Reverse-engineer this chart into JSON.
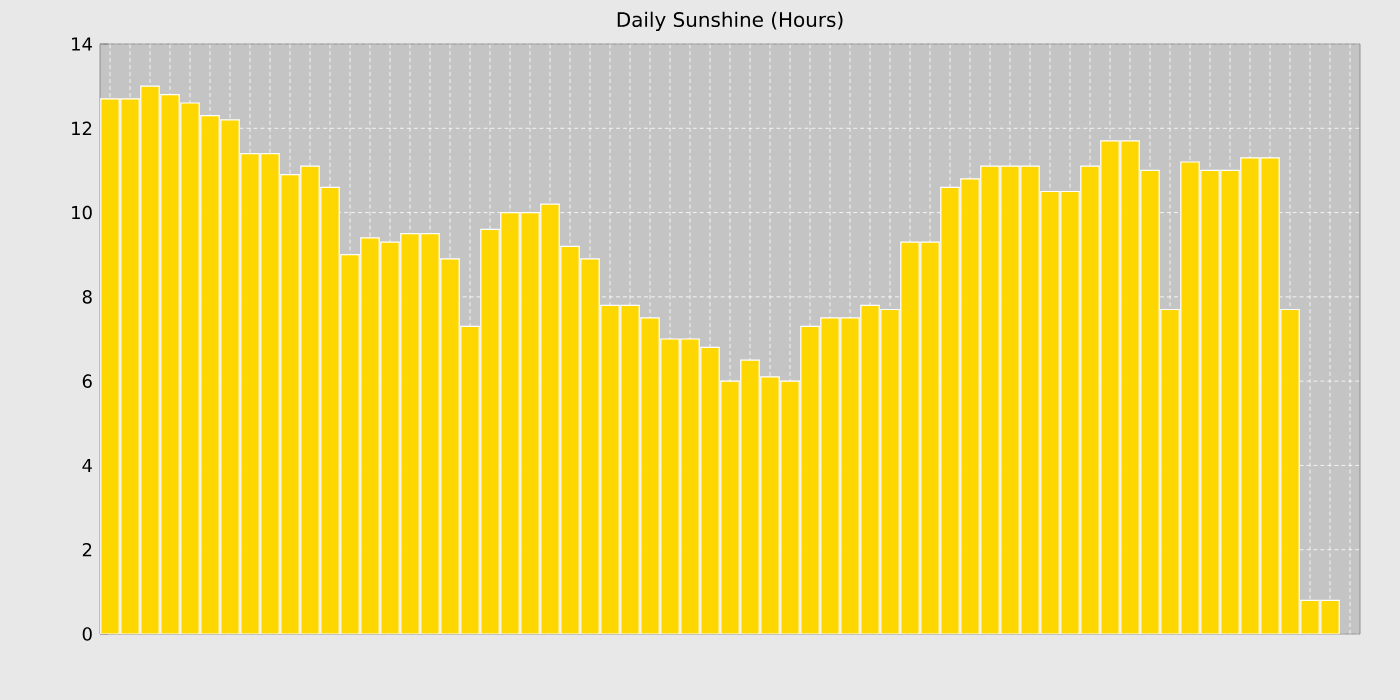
{
  "chart_data": {
    "type": "bar",
    "title": "Daily Sunshine (Hours)",
    "categories": [
      null,
      null,
      null,
      null,
      null,
      null,
      null,
      null,
      null,
      null,
      null,
      null,
      null,
      null,
      null,
      null,
      null,
      null,
      null,
      null,
      null,
      null,
      null,
      null,
      null,
      null,
      null,
      null,
      null,
      null,
      null,
      null,
      null,
      null,
      null,
      null,
      null,
      null,
      null,
      null,
      null,
      null,
      null,
      null,
      null,
      null,
      null,
      null,
      null,
      null,
      null,
      null,
      null,
      null,
      null,
      null,
      null,
      null,
      null,
      null,
      null,
      null,
      null
    ],
    "values": [
      12.7,
      12.7,
      13.0,
      12.8,
      12.6,
      12.3,
      12.2,
      11.4,
      11.4,
      10.9,
      11.1,
      10.6,
      9.0,
      9.4,
      9.3,
      9.5,
      9.5,
      8.9,
      7.3,
      9.6,
      10.0,
      10.0,
      10.2,
      9.2,
      8.9,
      7.8,
      7.8,
      7.5,
      7.0,
      7.0,
      6.8,
      6.0,
      6.5,
      6.1,
      6.0,
      7.3,
      7.5,
      7.5,
      7.8,
      7.7,
      9.3,
      9.3,
      10.6,
      10.8,
      11.1,
      11.1,
      11.1,
      10.5,
      10.5,
      11.1,
      11.7,
      11.7,
      11.0,
      7.7,
      11.2,
      11.0,
      11.0,
      11.3,
      11.3,
      7.7,
      0.8,
      0.8,
      null
    ],
    "color": "#ffd700",
    "ylim": [
      0,
      14
    ],
    "yticks": [
      0,
      2,
      4,
      6,
      8,
      10,
      12,
      14
    ],
    "grid": true,
    "tick_labels": "y"
  }
}
